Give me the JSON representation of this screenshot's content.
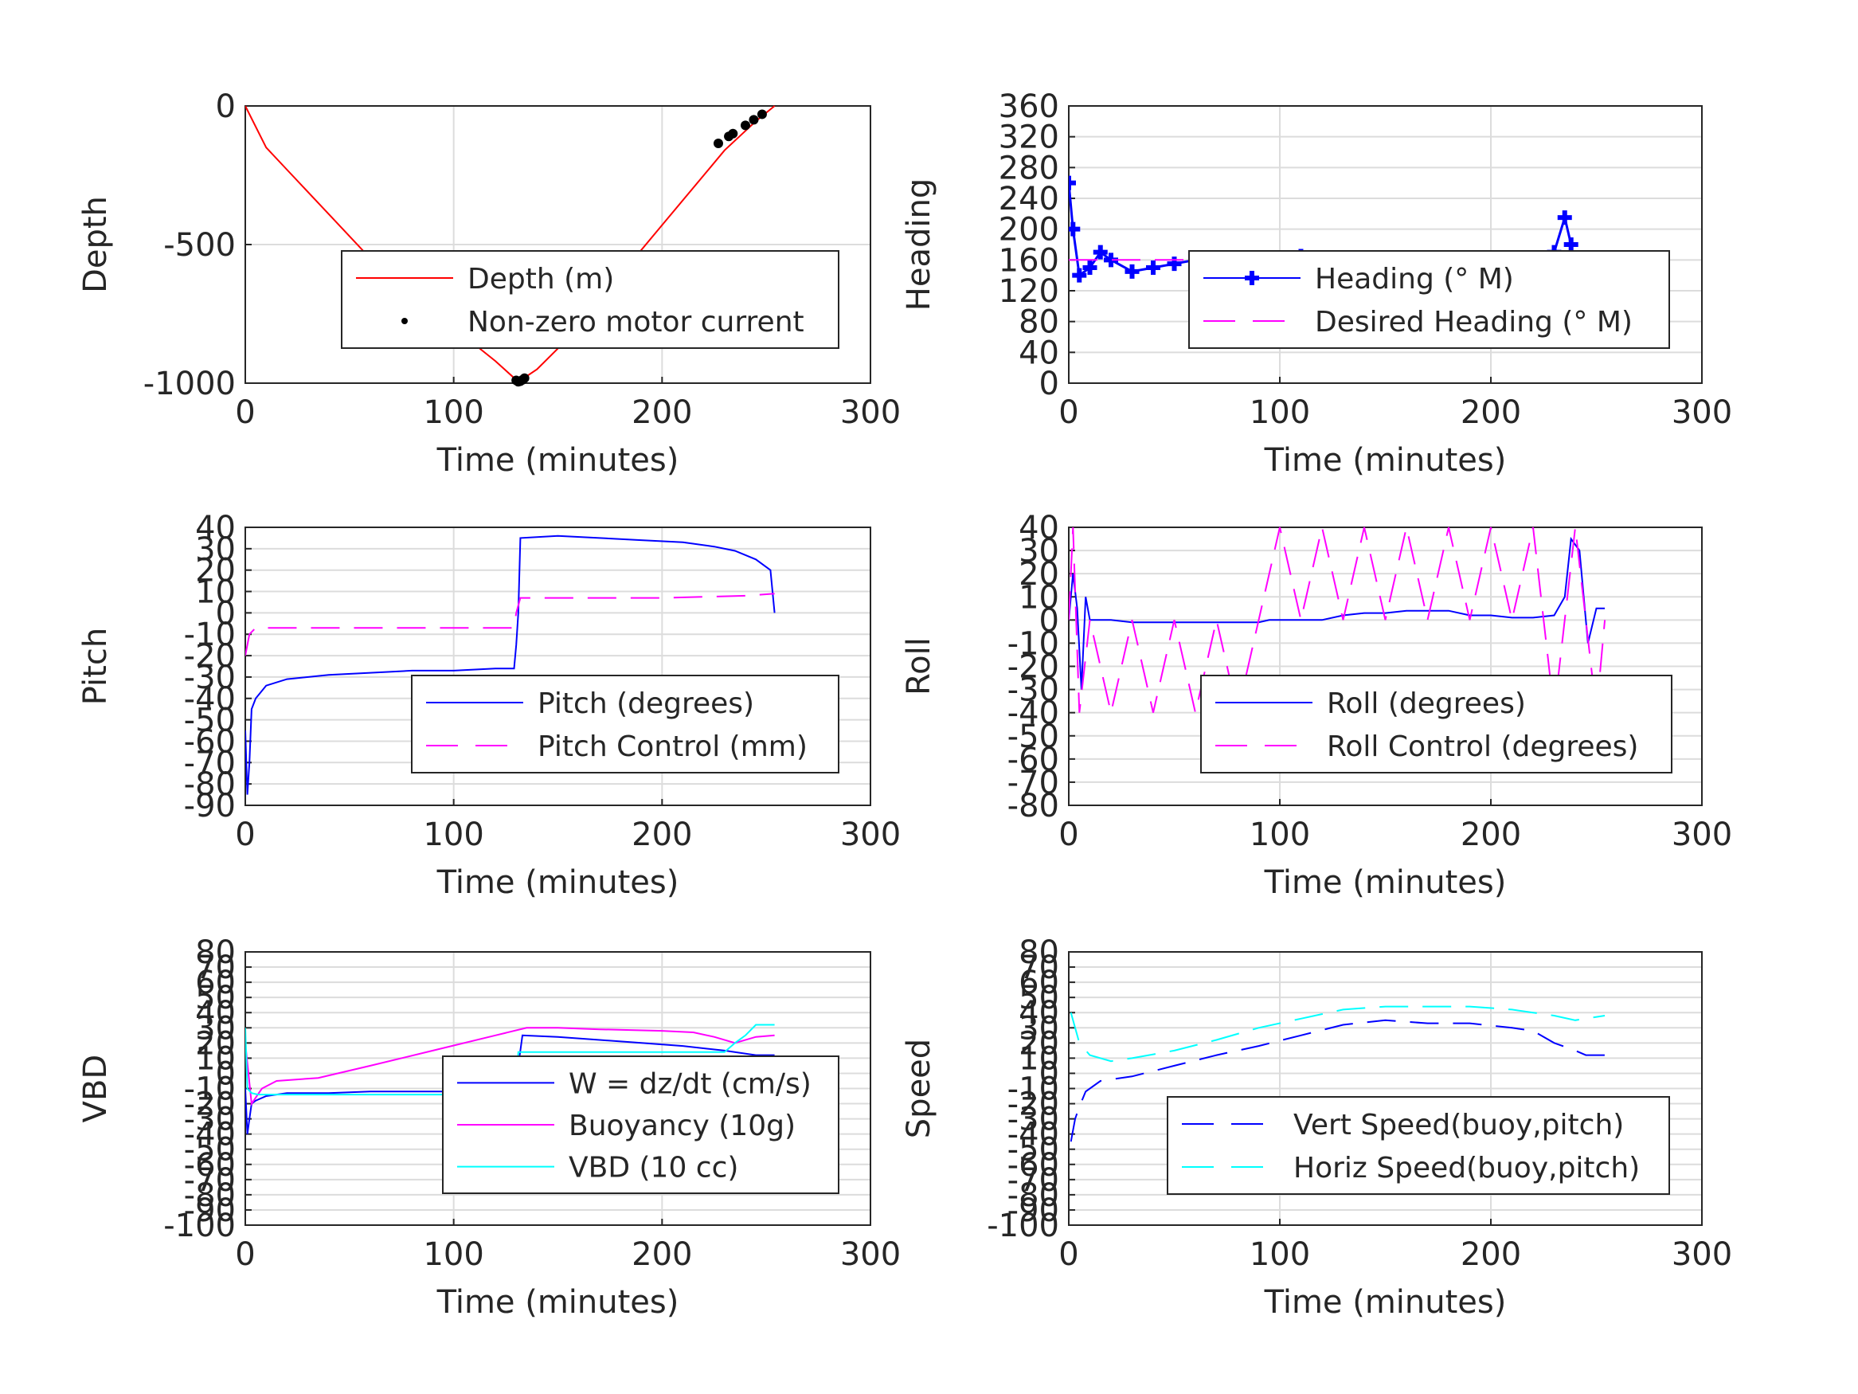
{
  "chart_data": [
    {
      "type": "line",
      "xlabel": "Time (minutes)",
      "ylabel": "Depth",
      "xlim": [
        0,
        300
      ],
      "ylim": [
        -1000,
        0
      ],
      "xticks": [
        "0",
        "100",
        "200",
        "300"
      ],
      "yticks": [
        "0",
        "-500",
        "-1000"
      ],
      "grid": true,
      "legend_placement": "lower-right",
      "series": [
        {
          "name": "Depth (m)",
          "color": "#ff0000",
          "style": "solid",
          "x": [
            0,
            10,
            20,
            40,
            60,
            80,
            100,
            120,
            131,
            140,
            160,
            180,
            200,
            220,
            230,
            240,
            245,
            254
          ],
          "y": [
            0,
            -150,
            -230,
            -390,
            -550,
            -680,
            -800,
            -920,
            -995,
            -950,
            -800,
            -610,
            -430,
            -250,
            -160,
            -90,
            -55,
            0
          ]
        },
        {
          "name": "Non-zero motor current",
          "color": "#000000",
          "style": "dots",
          "x": [
            130,
            131,
            132,
            133,
            134,
            227,
            232,
            234,
            240,
            244,
            248
          ],
          "y": [
            -990,
            -995,
            -993,
            -988,
            -982,
            -135,
            -110,
            -100,
            -70,
            -50,
            -30
          ]
        }
      ]
    },
    {
      "type": "line",
      "xlabel": "Time (minutes)",
      "ylabel": "Heading",
      "xlim": [
        0,
        300
      ],
      "ylim": [
        0,
        360
      ],
      "xticks": [
        "0",
        "100",
        "200",
        "300"
      ],
      "yticks": [
        "0",
        "40",
        "80",
        "120",
        "160",
        "200",
        "240",
        "280",
        "320",
        "360"
      ],
      "grid": true,
      "legend_placement": "center-right",
      "series": [
        {
          "name": "Heading (° M)",
          "color": "#0000ff",
          "style": "plus-markers",
          "x": [
            0,
            2,
            5,
            10,
            15,
            20,
            30,
            40,
            50,
            60,
            70,
            80,
            90,
            100,
            110,
            120,
            130,
            140,
            150,
            160,
            170,
            180,
            190,
            200,
            210,
            220,
            225,
            230,
            235,
            238,
            242,
            246,
            250,
            254
          ],
          "y": [
            260,
            200,
            140,
            150,
            170,
            160,
            145,
            150,
            155,
            160,
            150,
            155,
            160,
            150,
            165,
            160,
            155,
            150,
            145,
            160,
            150,
            155,
            145,
            160,
            150,
            155,
            135,
            170,
            215,
            180,
            95,
            160,
            155,
            160
          ]
        },
        {
          "name": "Desired Heading (° M)",
          "color": "#ff00ff",
          "style": "dashed",
          "x": [
            0,
            254
          ],
          "y": [
            160,
            160
          ]
        }
      ]
    },
    {
      "type": "line",
      "xlabel": "Time (minutes)",
      "ylabel": "Pitch",
      "xlim": [
        0,
        300
      ],
      "ylim": [
        -90,
        40
      ],
      "xticks": [
        "0",
        "100",
        "200",
        "300"
      ],
      "yticks": [
        "40",
        "30",
        "20",
        "10",
        "0",
        "-10",
        "-20",
        "-30",
        "-40",
        "-50",
        "-60",
        "-70",
        "-80",
        "-90"
      ],
      "grid": true,
      "legend_placement": "lower-right",
      "series": [
        {
          "name": "Pitch (degrees)",
          "color": "#0000ff",
          "style": "solid",
          "x": [
            0,
            1,
            2,
            3,
            5,
            10,
            20,
            40,
            60,
            80,
            100,
            120,
            129,
            130,
            131,
            132,
            150,
            170,
            190,
            210,
            225,
            235,
            245,
            252,
            254
          ],
          "y": [
            -55,
            -85,
            -70,
            -45,
            -40,
            -34,
            -31,
            -29,
            -28,
            -27,
            -27,
            -26,
            -26,
            -15,
            0,
            35,
            36,
            35,
            34,
            33,
            31,
            29,
            25,
            20,
            0
          ]
        },
        {
          "name": "Pitch Control (mm)",
          "color": "#ff00ff",
          "style": "dashed",
          "x": [
            0,
            2,
            5,
            20,
            60,
            100,
            129,
            130,
            132,
            160,
            200,
            240,
            254
          ],
          "y": [
            -20,
            -10,
            -7,
            -7,
            -7,
            -7,
            -7,
            0,
            7,
            7,
            7,
            8,
            9
          ]
        }
      ]
    },
    {
      "type": "line",
      "xlabel": "Time (minutes)",
      "ylabel": "Roll",
      "xlim": [
        0,
        300
      ],
      "ylim": [
        -80,
        40
      ],
      "xticks": [
        "0",
        "100",
        "200",
        "300"
      ],
      "yticks": [
        "40",
        "30",
        "20",
        "10",
        "0",
        "-10",
        "-20",
        "-30",
        "-40",
        "-50",
        "-60",
        "-70",
        "-80"
      ],
      "grid": true,
      "legend_placement": "lower-right",
      "series": [
        {
          "name": "Roll (degrees)",
          "color": "#0000ff",
          "style": "solid",
          "x": [
            0,
            2,
            4,
            6,
            8,
            10,
            15,
            20,
            30,
            40,
            50,
            60,
            70,
            80,
            90,
            95,
            100,
            110,
            120,
            130,
            140,
            150,
            160,
            170,
            180,
            190,
            200,
            210,
            220,
            230,
            235,
            238,
            242,
            246,
            250,
            254
          ],
          "y": [
            0,
            20,
            5,
            -30,
            10,
            0,
            0,
            0,
            -1,
            -1,
            -1,
            -1,
            -1,
            -1,
            -1,
            0,
            0,
            0,
            0,
            2,
            3,
            3,
            4,
            4,
            4,
            2,
            2,
            1,
            1,
            2,
            10,
            35,
            30,
            -10,
            5,
            5
          ]
        },
        {
          "name": "Roll Control (degrees)",
          "color": "#ff00ff",
          "style": "dashed",
          "x": [
            0,
            2,
            5,
            10,
            20,
            30,
            40,
            50,
            60,
            70,
            80,
            90,
            100,
            110,
            120,
            130,
            140,
            150,
            160,
            170,
            180,
            190,
            200,
            210,
            220,
            230,
            240,
            250,
            254
          ],
          "y": [
            0,
            40,
            -40,
            0,
            -40,
            0,
            -40,
            0,
            -40,
            0,
            -40,
            0,
            40,
            0,
            40,
            0,
            40,
            0,
            40,
            0,
            40,
            0,
            40,
            0,
            40,
            -40,
            40,
            -40,
            0
          ]
        }
      ]
    },
    {
      "type": "line",
      "xlabel": "Time (minutes)",
      "ylabel": "VBD",
      "xlim": [
        0,
        300
      ],
      "ylim": [
        -100,
        80
      ],
      "xticks": [
        "0",
        "100",
        "200",
        "300"
      ],
      "yticks": [
        "80",
        "70",
        "60",
        "50",
        "40",
        "30",
        "20",
        "10",
        "0",
        "-10",
        "-20",
        "-30",
        "-40",
        "-50",
        "-60",
        "-70",
        "-80",
        "-90",
        "-100"
      ],
      "grid": true,
      "legend_placement": "lower-right",
      "series": [
        {
          "name": "W = dz/dt (cm/s)",
          "color": "#0000ff",
          "style": "solid",
          "x": [
            0,
            1,
            2,
            3,
            5,
            10,
            20,
            40,
            60,
            80,
            100,
            120,
            130,
            131,
            133,
            150,
            170,
            190,
            210,
            230,
            245,
            254
          ],
          "y": [
            -10,
            -40,
            -30,
            -20,
            -18,
            -15,
            -13,
            -13,
            -12,
            -12,
            -12,
            -11,
            -11,
            5,
            25,
            24,
            22,
            20,
            18,
            15,
            12,
            12
          ]
        },
        {
          "name": "Buoyancy (10g)",
          "color": "#ff00ff",
          "style": "solid",
          "x": [
            0,
            3,
            8,
            15,
            35,
            60,
            90,
            120,
            135,
            150,
            170,
            200,
            215,
            225,
            235,
            245,
            254
          ],
          "y": [
            20,
            -20,
            -10,
            -5,
            -3,
            5,
            15,
            25,
            30,
            30,
            29,
            28,
            27,
            24,
            20,
            24,
            25
          ]
        },
        {
          "name": "VBD (10 cc)",
          "color": "#00ffff",
          "style": "solid",
          "x": [
            0,
            1,
            3,
            6,
            20,
            60,
            100,
            130,
            131,
            150,
            200,
            230,
            235,
            240,
            245,
            254
          ],
          "y": [
            30,
            -10,
            -13,
            -14,
            -14,
            -14,
            -14,
            -14,
            14,
            14,
            14,
            14,
            20,
            25,
            32,
            32
          ]
        }
      ]
    },
    {
      "type": "line",
      "xlabel": "Time (minutes)",
      "ylabel": "Speed",
      "xlim": [
        0,
        300
      ],
      "ylim": [
        -100,
        80
      ],
      "xticks": [
        "0",
        "100",
        "200",
        "300"
      ],
      "yticks": [
        "80",
        "70",
        "60",
        "50",
        "40",
        "30",
        "20",
        "10",
        "0",
        "-10",
        "-20",
        "-30",
        "-40",
        "-50",
        "-60",
        "-70",
        "-80",
        "-90",
        "-100"
      ],
      "grid": true,
      "legend_placement": "lower-right",
      "series": [
        {
          "name": "Vert Speed(buoy,pitch)",
          "color": "#0000ff",
          "style": "dashed",
          "x": [
            1,
            3,
            5,
            8,
            15,
            30,
            50,
            70,
            90,
            110,
            130,
            150,
            170,
            190,
            210,
            220,
            230,
            240,
            245,
            254
          ],
          "y": [
            -45,
            -30,
            -22,
            -12,
            -5,
            -2,
            5,
            12,
            18,
            25,
            32,
            35,
            33,
            33,
            30,
            28,
            20,
            15,
            12,
            12
          ]
        },
        {
          "name": "Horiz Speed(buoy,pitch)",
          "color": "#00ffff",
          "style": "dashed",
          "x": [
            1,
            3,
            5,
            10,
            20,
            30,
            50,
            70,
            90,
            110,
            130,
            150,
            170,
            190,
            210,
            220,
            230,
            240,
            254
          ],
          "y": [
            40,
            30,
            20,
            12,
            8,
            10,
            15,
            22,
            30,
            36,
            42,
            44,
            44,
            44,
            42,
            40,
            38,
            35,
            38
          ]
        }
      ]
    }
  ]
}
